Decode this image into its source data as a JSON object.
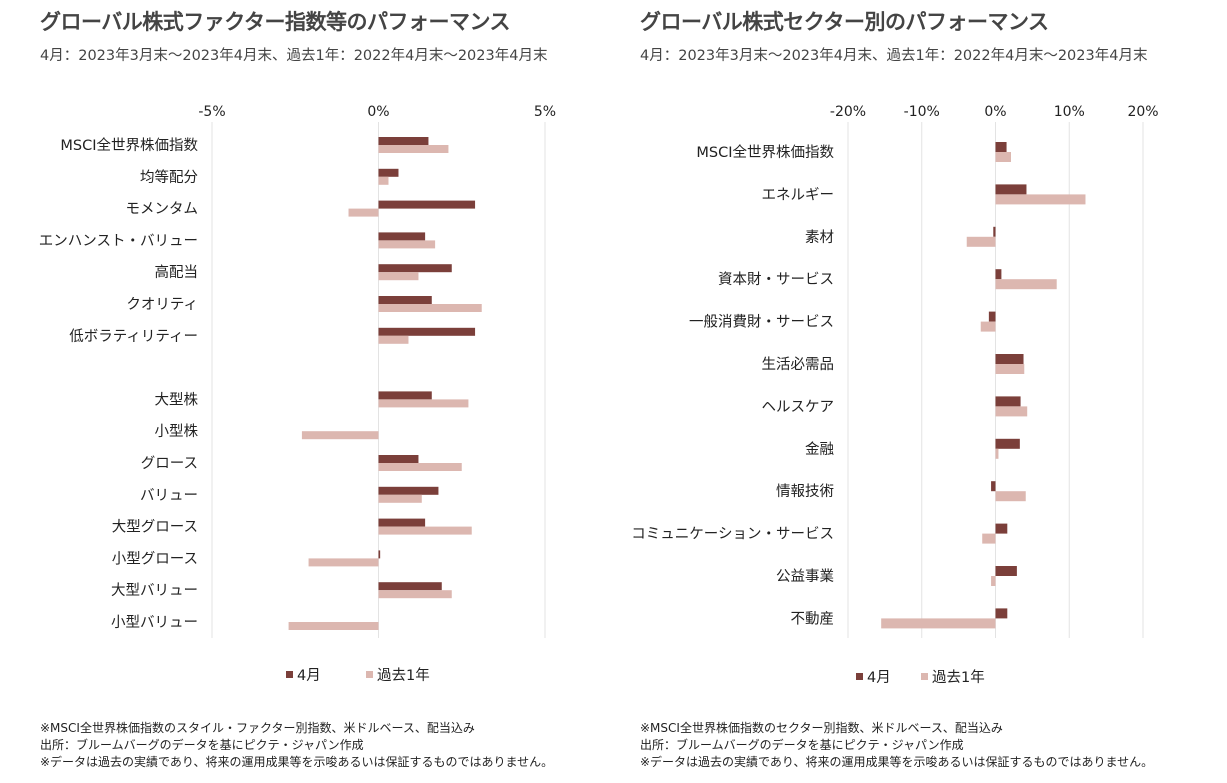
{
  "colors": {
    "april": "#7b3f3a",
    "past_year": "#dcb7b0",
    "grid": "#e3e3e3"
  },
  "left": {
    "title": "グローバル株式ファクター指数等のパフォーマンス",
    "subtitle": "4月：2023年3月末～2023年4月末、過去1年：2022年4月末～2023年4月末",
    "footnotes": [
      "※MSCI全世界株価指数のスタイル・ファクター別指数、米ドルベース、配当込み",
      "出所：ブルームバーグのデータを基にピクテ・ジャパン作成",
      "※データは過去の実績であり、将来の運用成果等を示唆あるいは保証するものではありません。"
    ]
  },
  "right": {
    "title": "グローバル株式セクター別のパフォーマンス",
    "subtitle": "4月：2023年3月末～2023年4月末、過去1年：2022年4月末～2023年4月末",
    "footnotes": [
      "※MSCI全世界株価指数のセクター別指数、米ドルベース、配当込み",
      "出所：ブルームバーグのデータを基にピクテ・ジャパン作成",
      "※データは過去の実績であり、将来の運用成果等を示唆あるいは保証するものではありません。"
    ]
  },
  "chart_data": [
    {
      "type": "bar",
      "orientation": "horizontal",
      "x_ticks": [
        "-5%",
        "0%",
        "5%"
      ],
      "xlim": [
        -5,
        5
      ],
      "x_tick_values": [
        -5,
        0,
        5
      ],
      "categories": [
        "MSCI全世界株価指数",
        "均等配分",
        "モメンタム",
        "エンハンスト・バリュー",
        "高配当",
        "クオリティ",
        "低ボラティリティー",
        "",
        "大型株",
        "小型株",
        "グロース",
        "バリュー",
        "大型グロース",
        "小型グロース",
        "大型バリュー",
        "小型バリュー"
      ],
      "series": [
        {
          "name": "4月",
          "values": [
            1.5,
            0.6,
            2.9,
            1.4,
            2.2,
            1.6,
            2.9,
            null,
            1.6,
            0.0,
            1.2,
            1.8,
            1.4,
            0.05,
            1.9,
            0.0
          ]
        },
        {
          "name": "過去1年",
          "values": [
            2.1,
            0.3,
            -0.9,
            1.7,
            1.2,
            3.1,
            0.9,
            null,
            2.7,
            -2.3,
            2.5,
            1.3,
            2.8,
            -2.1,
            2.2,
            -2.7
          ]
        }
      ],
      "legend": "bottom",
      "grid": true
    },
    {
      "type": "bar",
      "orientation": "horizontal",
      "x_ticks": [
        "-20%",
        "-10%",
        "0%",
        "10%",
        "20%"
      ],
      "xlim": [
        -20,
        20
      ],
      "x_tick_values": [
        -20,
        -10,
        0,
        10,
        20
      ],
      "categories": [
        "MSCI全世界株価指数",
        "エネルギー",
        "素材",
        "資本財・サービス",
        "一般消費財・サービス",
        "生活必需品",
        "ヘルスケア",
        "金融",
        "情報技術",
        "コミュニケーション・サービス",
        "公益事業",
        "不動産"
      ],
      "series": [
        {
          "name": "4月",
          "values": [
            1.5,
            4.2,
            -0.3,
            0.8,
            -0.9,
            3.8,
            3.4,
            3.3,
            -0.6,
            1.6,
            2.9,
            1.6
          ]
        },
        {
          "name": "過去1年",
          "values": [
            2.1,
            12.2,
            -3.9,
            8.3,
            -2.0,
            3.9,
            4.3,
            0.4,
            4.1,
            -1.8,
            -0.6,
            -15.5
          ]
        }
      ],
      "legend": "bottom",
      "grid": true
    }
  ]
}
